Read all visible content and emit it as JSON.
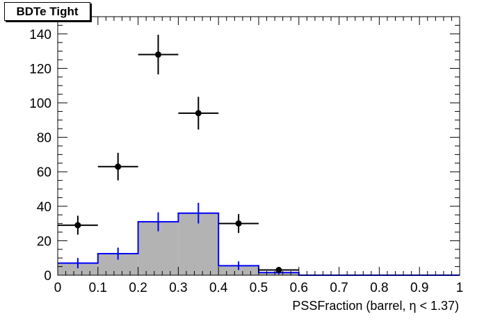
{
  "chart_data": {
    "type": "bar",
    "title": "BDTe Tight",
    "xlabel": "PSSFraction (barrel,  η < 1.37)",
    "ylabel": "",
    "xlim": [
      0,
      1
    ],
    "ylim": [
      0,
      150
    ],
    "x_ticks": [
      "0",
      "0.1",
      "0.2",
      "0.3",
      "0.4",
      "0.5",
      "0.6",
      "0.7",
      "0.8",
      "0.9",
      "1"
    ],
    "y_ticks": [
      "0",
      "20",
      "40",
      "60",
      "80",
      "100",
      "120",
      "140"
    ],
    "bin_edges": [
      0,
      0.1,
      0.2,
      0.3,
      0.4,
      0.5,
      0.6,
      0.7,
      0.8,
      0.9,
      1.0
    ],
    "series": [
      {
        "kind": "histogram",
        "fill_color": "#b3b3b3",
        "line_color": "#0000ff",
        "values": [
          7,
          12.5,
          31,
          36,
          5.5,
          1.5,
          0,
          0,
          0,
          0
        ],
        "errors": [
          3,
          3.5,
          5.5,
          6,
          2.5,
          1,
          0,
          0,
          0,
          0
        ]
      },
      {
        "kind": "points",
        "color": "#000000",
        "x": [
          0.05,
          0.15,
          0.25,
          0.35,
          0.45,
          0.55
        ],
        "y": [
          29,
          63,
          128,
          94,
          30,
          3
        ],
        "yerr": [
          5.5,
          8,
          11.5,
          9.5,
          5.5,
          1.7
        ],
        "xerr": [
          0.05,
          0.05,
          0.05,
          0.05,
          0.05,
          0.05
        ]
      }
    ],
    "grid": false,
    "legend": "none"
  }
}
